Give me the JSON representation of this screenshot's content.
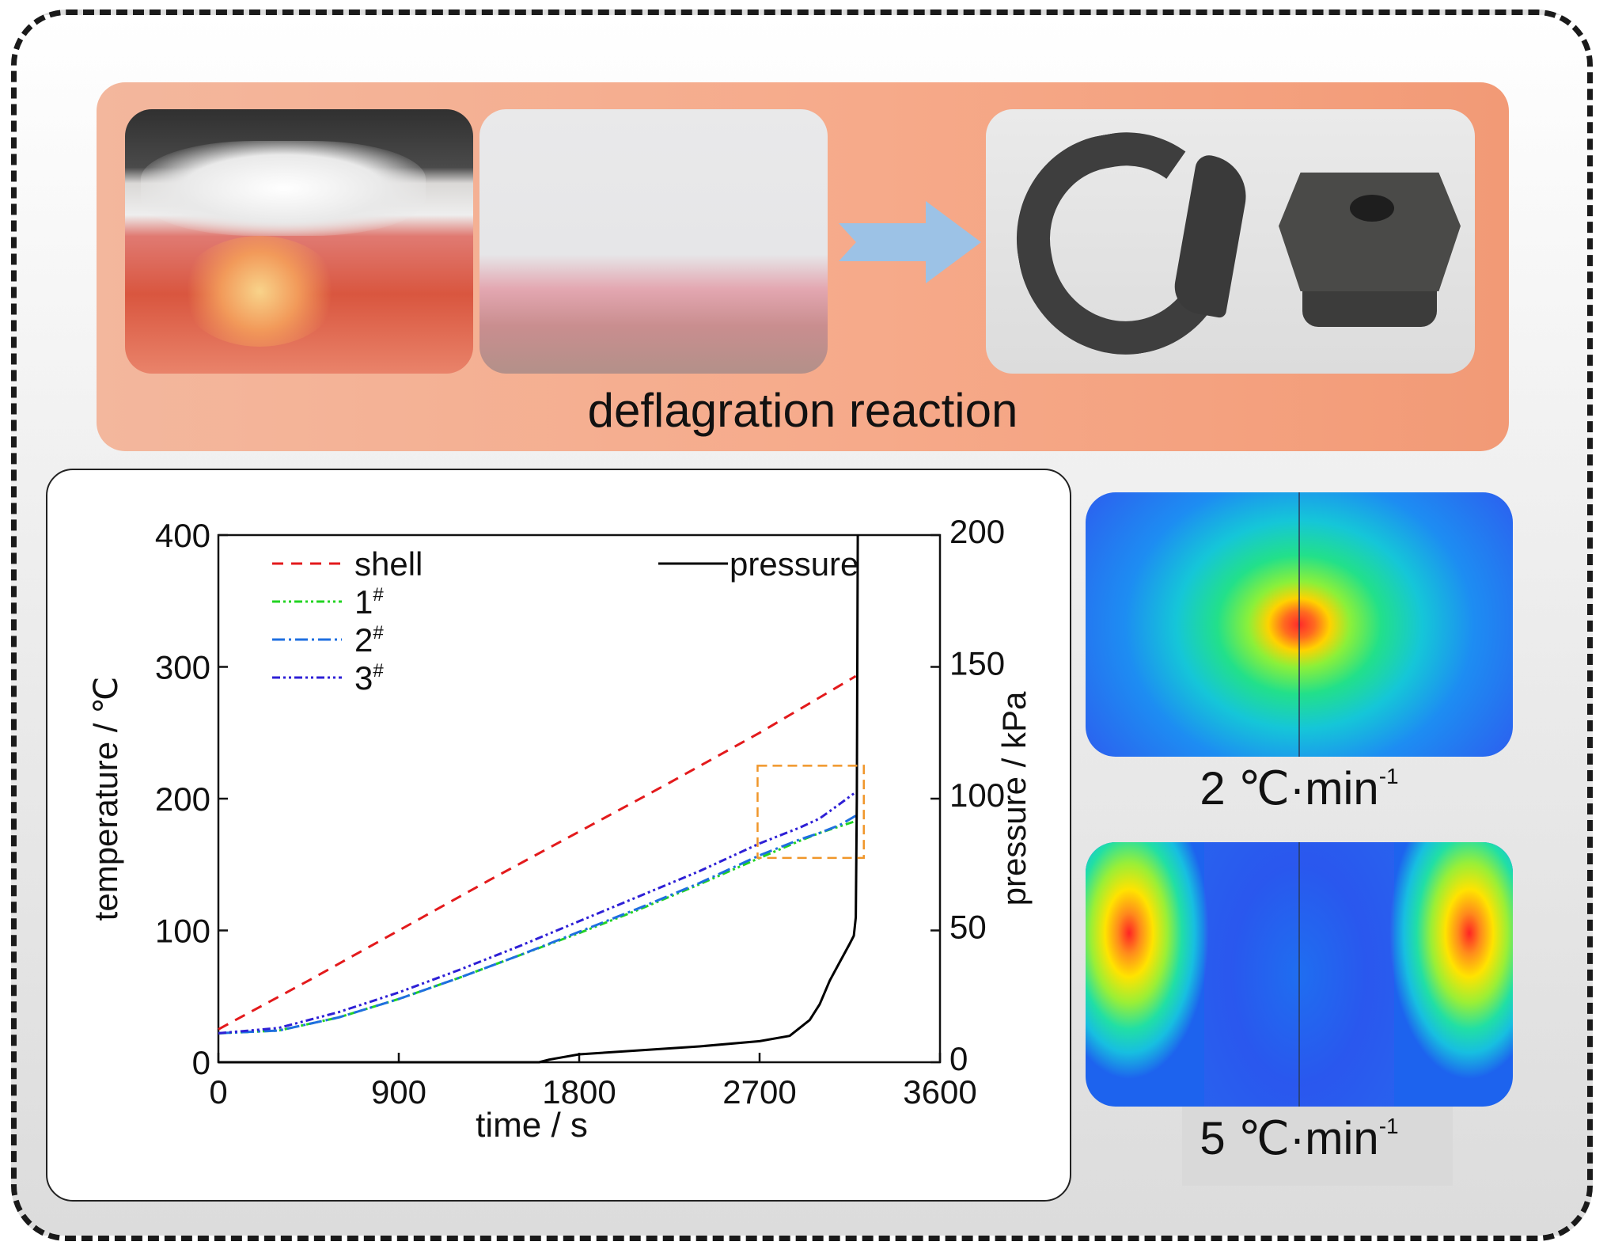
{
  "banner": {
    "label": "deflagration reaction"
  },
  "sims": [
    {
      "rate": "2",
      "unit": "℃·min",
      "exp": "-1"
    },
    {
      "rate": "5",
      "unit": "℃·min",
      "exp": "-1"
    }
  ],
  "chart_data": {
    "type": "line",
    "xlabel": "time / s",
    "ylabel": "temperature / ℃",
    "y2label": "pressure / kPa",
    "xlim": [
      0,
      3600
    ],
    "ylim": [
      0,
      400
    ],
    "y2lim": [
      0,
      200
    ],
    "xticks": [
      "0",
      "900",
      "1800",
      "2700",
      "3600"
    ],
    "yticks": [
      "0",
      "100",
      "200",
      "300",
      "400"
    ],
    "y2ticks": [
      "0",
      "50",
      "100",
      "150",
      "200"
    ],
    "legend_left": [
      {
        "name": "shell",
        "sup": "",
        "color": "#e31a1c",
        "dash": "14,10"
      },
      {
        "name": "1",
        "sup": "#",
        "color": "#22d422",
        "dash": "10,4,3,4,3,4"
      },
      {
        "name": "2",
        "sup": "#",
        "color": "#1f6fe0",
        "dash": "16,5,3,5"
      },
      {
        "name": "3",
        "sup": "#",
        "color": "#2e20d6",
        "dash": "10,4,3,4,3,4"
      }
    ],
    "legend_right": {
      "name": "pressure",
      "color": "#000000"
    },
    "series": [
      {
        "name": "shell",
        "axis": "left",
        "x": [
          0,
          450,
          900,
          1350,
          1800,
          2250,
          2700,
          3180
        ],
        "y": [
          25,
          62,
          100,
          138,
          175,
          212,
          250,
          293
        ]
      },
      {
        "name": "1#",
        "axis": "left",
        "x": [
          0,
          300,
          600,
          900,
          1200,
          1500,
          1800,
          2100,
          2400,
          2700,
          2900,
          3000,
          3180
        ],
        "y": [
          22,
          24,
          34,
          48,
          64,
          81,
          98,
          116,
          135,
          155,
          168,
          174,
          183
        ]
      },
      {
        "name": "2#",
        "axis": "left",
        "x": [
          0,
          300,
          600,
          900,
          1200,
          1500,
          1800,
          2100,
          2400,
          2700,
          2900,
          3000,
          3100,
          3180
        ],
        "y": [
          22,
          24,
          34,
          48,
          64,
          81,
          99,
          117,
          136,
          157,
          169,
          174,
          180,
          187
        ]
      },
      {
        "name": "3#",
        "axis": "left",
        "x": [
          0,
          300,
          600,
          900,
          1200,
          1500,
          1800,
          2100,
          2400,
          2700,
          2900,
          3000,
          3100,
          3180
        ],
        "y": [
          22,
          26,
          38,
          53,
          70,
          88,
          107,
          126,
          145,
          166,
          178,
          185,
          196,
          205
        ]
      },
      {
        "name": "pressure",
        "axis": "right",
        "x": [
          0,
          900,
          1600,
          1650,
          1800,
          2100,
          2400,
          2700,
          2850,
          2950,
          3000,
          3050,
          3100,
          3150,
          3170,
          3180,
          3185,
          3190
        ],
        "y": [
          0,
          0,
          0,
          1,
          3,
          4.5,
          6,
          8,
          10,
          16,
          22,
          31,
          38,
          45,
          48,
          55,
          100,
          200
        ]
      }
    ],
    "highlight_box": {
      "x": [
        2690,
        3220
      ],
      "y": [
        155,
        225
      ]
    }
  }
}
